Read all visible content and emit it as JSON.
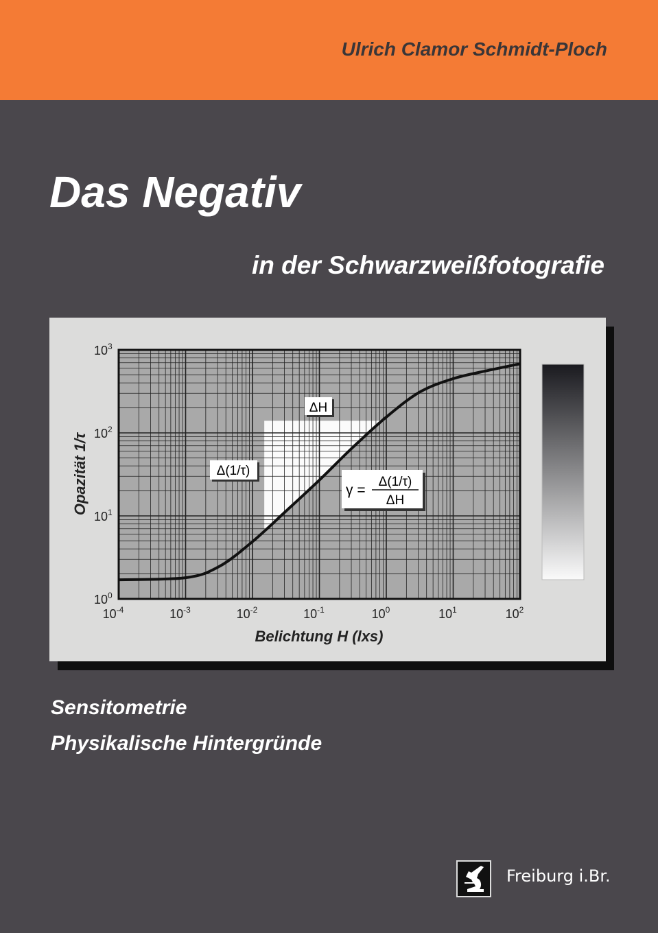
{
  "cover": {
    "author": "Ulrich Clamor Schmidt-Ploch",
    "title": "Das Negativ",
    "subtitle": "in der Schwarzweißfotografie",
    "topics": [
      "Sensitometrie",
      "Physikalische Hintergründe"
    ],
    "publisher_city": "Freiburg i.Br.",
    "colors": {
      "band": "#f47b35",
      "background": "#4a474c"
    }
  },
  "chart_data": {
    "type": "line",
    "xlabel": "Belichtung H  (lxs)",
    "ylabel": "Opazität 1/τ",
    "xscale": "log",
    "yscale": "log",
    "xlim": [
      0.0001,
      100
    ],
    "ylim": [
      1,
      1000
    ],
    "grid": true,
    "x_ticks": [
      {
        "base": "10",
        "exp": "-4"
      },
      {
        "base": "10",
        "exp": "-3"
      },
      {
        "base": "10",
        "exp": "-2"
      },
      {
        "base": "10",
        "exp": "-1"
      },
      {
        "base": "10",
        "exp": "0"
      },
      {
        "base": "10",
        "exp": "1"
      },
      {
        "base": "10",
        "exp": "2"
      }
    ],
    "y_ticks": [
      {
        "base": "10",
        "exp": "0"
      },
      {
        "base": "10",
        "exp": "1"
      },
      {
        "base": "10",
        "exp": "2"
      },
      {
        "base": "10",
        "exp": "3"
      }
    ],
    "series": [
      {
        "x": [
          0.0001,
          0.001,
          0.00316,
          0.01,
          0.0316,
          0.1,
          0.316,
          1,
          3.16,
          10,
          31.6,
          100
        ],
        "y": [
          1.7,
          1.8,
          2.45,
          4.9,
          11.4,
          27,
          67,
          155,
          310,
          450,
          560,
          680
        ]
      }
    ],
    "annotations": {
      "delta_h": "ΔH",
      "delta_opacity": "Δ(1/τ)",
      "gamma_lhs": "γ =",
      "gamma_num": "Δ(1/τ)",
      "gamma_den": "ΔH"
    },
    "highlight_region": {
      "x_start": 0.015,
      "y_top": 140
    }
  }
}
